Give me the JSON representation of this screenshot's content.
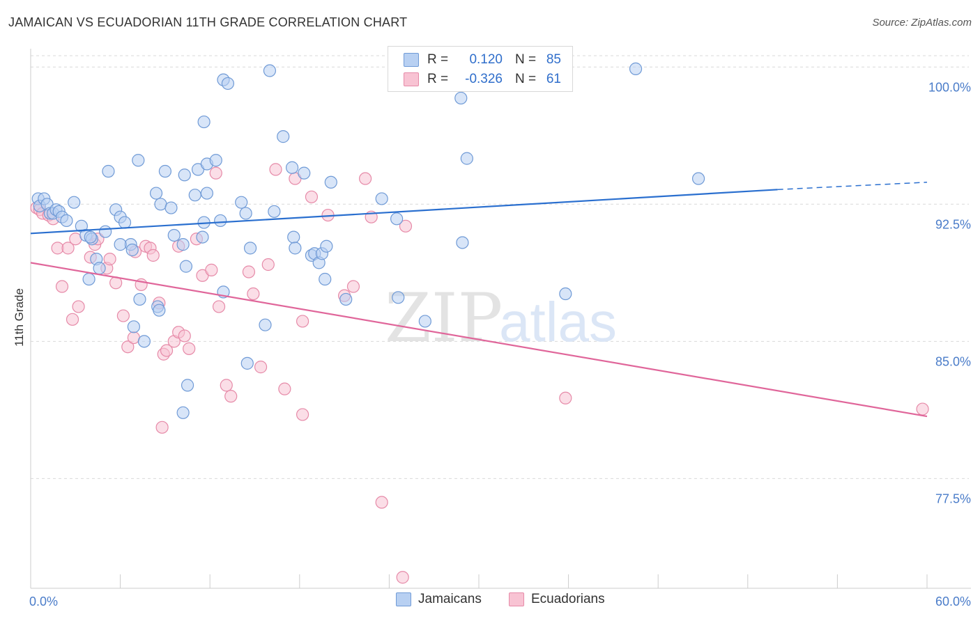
{
  "header": {
    "title": "JAMAICAN VS ECUADORIAN 11TH GRADE CORRELATION CHART",
    "source": "Source: ZipAtlas.com"
  },
  "watermark": {
    "zip": "ZIP",
    "atlas": "atlas"
  },
  "colors": {
    "blue_fill": "#b8d0f2",
    "blue_stroke": "#6f9ad6",
    "blue_line": "#2a6fcf",
    "pink_fill": "#f8c3d3",
    "pink_stroke": "#e68aa8",
    "pink_line": "#e0669a",
    "axis_text": "#4a7cc9",
    "grid": "#d9d9d9"
  },
  "legend": {
    "rows": [
      {
        "r_label": "R =",
        "r_value": "0.120",
        "n_label": "N =",
        "n_value": "85"
      },
      {
        "r_label": "R =",
        "r_value": "-0.326",
        "n_label": "N =",
        "n_value": "61"
      }
    ]
  },
  "bottom_legend": {
    "jamaicans": "Jamaicans",
    "ecuadorians": "Ecuadorians"
  },
  "chart_data": {
    "type": "scatter",
    "title": "JAMAICAN VS ECUADORIAN 11TH GRADE CORRELATION CHART",
    "xlabel": "",
    "ylabel": "11th Grade",
    "xlim": [
      0,
      60
    ],
    "ylim": [
      71.5,
      101.0
    ],
    "x_tick_labels": [
      "0.0%",
      "60.0%"
    ],
    "y_ticks": [
      77.5,
      85.0,
      92.5,
      100.0
    ],
    "y_tick_labels": [
      "77.5%",
      "85.0%",
      "92.5%",
      "100.0%"
    ],
    "grid": true,
    "legend_position": "top-center",
    "series": [
      {
        "name": "Jamaicans",
        "R": 0.12,
        "N": 85,
        "trend": {
          "x": [
            0,
            50
          ],
          "y": [
            90.9,
            93.3
          ],
          "dashed_to": [
            60,
            93.7
          ]
        },
        "points": [
          [
            0.5,
            92.8
          ],
          [
            0.6,
            92.4
          ],
          [
            0.9,
            92.8
          ],
          [
            1.1,
            92.5
          ],
          [
            1.3,
            92.0
          ],
          [
            1.5,
            92.0
          ],
          [
            1.7,
            92.2
          ],
          [
            1.9,
            92.1
          ],
          [
            2.1,
            91.8
          ],
          [
            2.4,
            91.6
          ],
          [
            2.9,
            92.6
          ],
          [
            3.4,
            91.3
          ],
          [
            3.7,
            90.8
          ],
          [
            4.1,
            90.6
          ],
          [
            4.4,
            89.5
          ],
          [
            3.9,
            88.4
          ],
          [
            4.6,
            89.0
          ],
          [
            5.0,
            91.0
          ],
          [
            5.7,
            92.2
          ],
          [
            6.0,
            91.8
          ],
          [
            6.3,
            91.5
          ],
          [
            6.7,
            90.3
          ],
          [
            5.2,
            94.3
          ],
          [
            7.2,
            94.9
          ],
          [
            8.4,
            93.1
          ],
          [
            9.0,
            94.3
          ],
          [
            10.3,
            94.1
          ],
          [
            11.2,
            94.4
          ],
          [
            11.8,
            94.7
          ],
          [
            12.4,
            94.9
          ],
          [
            8.7,
            92.5
          ],
          [
            9.4,
            92.3
          ],
          [
            11.0,
            93.0
          ],
          [
            11.6,
            91.5
          ],
          [
            12.7,
            91.6
          ],
          [
            14.1,
            92.6
          ],
          [
            14.4,
            92.0
          ],
          [
            16.3,
            92.1
          ],
          [
            17.6,
            90.7
          ],
          [
            17.7,
            90.1
          ],
          [
            18.8,
            89.7
          ],
          [
            19.0,
            89.8
          ],
          [
            19.3,
            89.3
          ],
          [
            19.5,
            89.8
          ],
          [
            19.8,
            90.2
          ],
          [
            19.7,
            88.4
          ],
          [
            21.1,
            87.3
          ],
          [
            10.2,
            90.3
          ],
          [
            9.6,
            90.8
          ],
          [
            11.5,
            90.7
          ],
          [
            7.3,
            87.3
          ],
          [
            6.9,
            85.8
          ],
          [
            7.6,
            85.0
          ],
          [
            8.5,
            86.9
          ],
          [
            8.6,
            86.7
          ],
          [
            10.4,
            89.1
          ],
          [
            12.9,
            87.7
          ],
          [
            14.7,
            90.1
          ],
          [
            15.7,
            85.9
          ],
          [
            14.5,
            83.8
          ],
          [
            10.5,
            82.6
          ],
          [
            10.2,
            81.1
          ],
          [
            6.0,
            90.3
          ],
          [
            4.0,
            90.7
          ],
          [
            6.8,
            90.0
          ],
          [
            11.6,
            97.0
          ],
          [
            12.9,
            99.3
          ],
          [
            13.2,
            99.1
          ],
          [
            16.0,
            99.8
          ],
          [
            16.9,
            96.2
          ],
          [
            26.5,
            99.8
          ],
          [
            28.8,
            98.3
          ],
          [
            28.9,
            90.4
          ],
          [
            29.2,
            95.0
          ],
          [
            40.5,
            99.9
          ],
          [
            44.7,
            93.9
          ],
          [
            23.5,
            92.8
          ],
          [
            24.5,
            91.7
          ],
          [
            24.6,
            87.4
          ],
          [
            26.4,
            86.1
          ],
          [
            35.8,
            87.6
          ],
          [
            17.5,
            94.5
          ],
          [
            18.3,
            94.2
          ],
          [
            20.1,
            93.7
          ],
          [
            11.8,
            93.1
          ]
        ]
      },
      {
        "name": "Ecuadorians",
        "R": -0.326,
        "N": 61,
        "trend": {
          "x": [
            0,
            60
          ],
          "y": [
            89.3,
            80.9
          ]
        },
        "points": [
          [
            0.4,
            92.3
          ],
          [
            0.6,
            92.2
          ],
          [
            0.8,
            92.0
          ],
          [
            1.2,
            91.9
          ],
          [
            1.5,
            91.7
          ],
          [
            1.8,
            90.1
          ],
          [
            2.1,
            88.0
          ],
          [
            2.5,
            90.1
          ],
          [
            3.0,
            90.6
          ],
          [
            2.8,
            86.2
          ],
          [
            3.2,
            86.9
          ],
          [
            4.0,
            89.6
          ],
          [
            4.3,
            90.3
          ],
          [
            4.5,
            90.6
          ],
          [
            5.1,
            89.0
          ],
          [
            5.3,
            89.5
          ],
          [
            5.7,
            88.2
          ],
          [
            6.2,
            86.4
          ],
          [
            6.5,
            84.7
          ],
          [
            6.9,
            85.2
          ],
          [
            7.4,
            88.1
          ],
          [
            7.7,
            90.2
          ],
          [
            8.0,
            90.1
          ],
          [
            8.2,
            89.7
          ],
          [
            8.6,
            87.1
          ],
          [
            8.9,
            84.3
          ],
          [
            9.1,
            84.5
          ],
          [
            9.6,
            85.0
          ],
          [
            9.9,
            85.5
          ],
          [
            10.3,
            85.3
          ],
          [
            10.6,
            84.6
          ],
          [
            11.1,
            90.6
          ],
          [
            11.5,
            88.6
          ],
          [
            12.1,
            88.9
          ],
          [
            12.6,
            86.9
          ],
          [
            13.1,
            82.6
          ],
          [
            13.4,
            82.0
          ],
          [
            14.6,
            88.8
          ],
          [
            14.9,
            87.6
          ],
          [
            15.4,
            83.6
          ],
          [
            15.9,
            89.2
          ],
          [
            16.4,
            94.4
          ],
          [
            17.0,
            82.4
          ],
          [
            17.7,
            93.9
          ],
          [
            18.2,
            81.0
          ],
          [
            18.8,
            92.9
          ],
          [
            19.9,
            91.9
          ],
          [
            21.0,
            87.5
          ],
          [
            21.6,
            88.0
          ],
          [
            22.4,
            93.9
          ],
          [
            22.8,
            91.8
          ],
          [
            23.5,
            76.2
          ],
          [
            25.1,
            91.3
          ],
          [
            24.9,
            72.1
          ],
          [
            35.8,
            81.9
          ],
          [
            59.7,
            81.3
          ],
          [
            7.0,
            89.9
          ],
          [
            8.8,
            80.3
          ],
          [
            12.4,
            94.2
          ],
          [
            9.9,
            90.2
          ],
          [
            18.2,
            86.1
          ]
        ]
      }
    ]
  }
}
